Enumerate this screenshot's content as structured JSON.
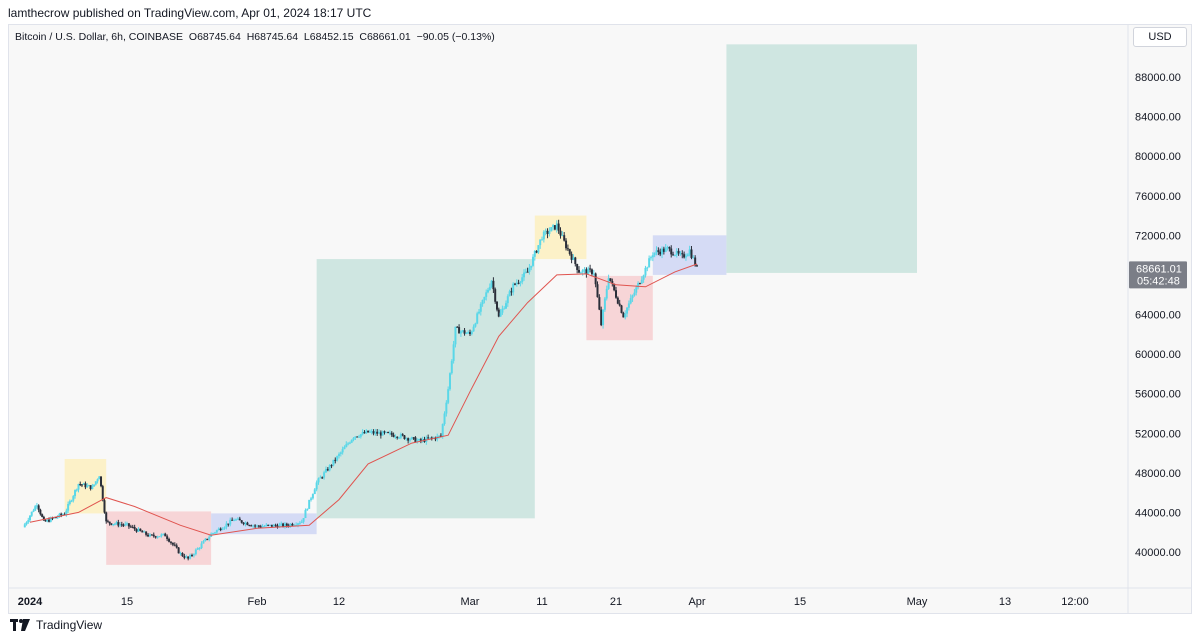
{
  "header": {
    "published": "lamthecrow published on TradingView.com, Apr 01, 2024 18:17 UTC",
    "symbol_line": "Bitcoin / U.S. Dollar, 6h, COINBASE  O68745.64  H68745.64  L68452.15  C68661.01  −90.05 (−0.13%)"
  },
  "currency": "USD",
  "current_price": {
    "price": "68661.01",
    "countdown": "05:42:48"
  },
  "footer": {
    "brand": "TradingView"
  },
  "colors": {
    "up_candle": "#5ad7e8",
    "down_candle": "#2a2e39",
    "ma_line": "#e0544f",
    "target_zone": "#cfe6e1",
    "yellow_zone": "#fcf1c8",
    "red_zone": "#f7d5d7",
    "blue_zone": "#d5dbf5"
  },
  "chart_data": {
    "type": "candlestick",
    "title": "Bitcoin / U.S. Dollar, 6h, COINBASE",
    "ylabel": "USD",
    "ylim": [
      36500,
      91500
    ],
    "price_ticks": [
      "88000.00",
      "84000.00",
      "80000.00",
      "76000.00",
      "72000.00",
      "68000.00",
      "64000.00",
      "60000.00",
      "56000.00",
      "52000.00",
      "48000.00",
      "44000.00",
      "40000.00"
    ],
    "time_ticks": [
      {
        "label": "2024",
        "date": "2024-01-01",
        "bold": true
      },
      {
        "label": "15",
        "date": "2024-01-15"
      },
      {
        "label": "Feb",
        "date": "2024-02-01"
      },
      {
        "label": "12",
        "date": "2024-02-12"
      },
      {
        "label": "Mar",
        "date": "2024-03-01"
      },
      {
        "label": "11",
        "date": "2024-03-11"
      },
      {
        "label": "21",
        "date": "2024-03-21"
      },
      {
        "label": "Apr",
        "date": "2024-04-01"
      },
      {
        "label": "15",
        "date": "2024-04-15"
      },
      {
        "label": "May",
        "date": "2024-05-01"
      },
      {
        "label": "13",
        "date": "2024-05-13"
      },
      {
        "label": "12:00",
        "date": "2024-05-20"
      }
    ],
    "price_path": [
      [
        "2023-12-31",
        42500
      ],
      [
        "2024-01-02",
        44900
      ],
      [
        "2024-01-03",
        43000
      ],
      [
        "2024-01-06",
        43900
      ],
      [
        "2024-01-08",
        46900
      ],
      [
        "2024-01-10",
        46500
      ],
      [
        "2024-01-11",
        47800
      ],
      [
        "2024-01-12",
        43000
      ],
      [
        "2024-01-15",
        42700
      ],
      [
        "2024-01-18",
        41600
      ],
      [
        "2024-01-20",
        41700
      ],
      [
        "2024-01-22",
        39800
      ],
      [
        "2024-01-23",
        39300
      ],
      [
        "2024-01-26",
        41800
      ],
      [
        "2024-01-29",
        43300
      ],
      [
        "2024-02-01",
        42600
      ],
      [
        "2024-02-05",
        42700
      ],
      [
        "2024-02-07",
        43100
      ],
      [
        "2024-02-09",
        47000
      ],
      [
        "2024-02-12",
        49800
      ],
      [
        "2024-02-14",
        51700
      ],
      [
        "2024-02-16",
        52100
      ],
      [
        "2024-02-20",
        51800
      ],
      [
        "2024-02-23",
        51200
      ],
      [
        "2024-02-26",
        51700
      ],
      [
        "2024-02-27",
        56500
      ],
      [
        "2024-02-28",
        62500
      ],
      [
        "2024-03-01",
        62000
      ],
      [
        "2024-03-04",
        67500
      ],
      [
        "2024-03-05",
        63700
      ],
      [
        "2024-03-07",
        66900
      ],
      [
        "2024-03-09",
        68300
      ],
      [
        "2024-03-11",
        71900
      ],
      [
        "2024-03-13",
        73000
      ],
      [
        "2024-03-14",
        71300
      ],
      [
        "2024-03-16",
        68400
      ],
      [
        "2024-03-18",
        68300
      ],
      [
        "2024-03-19",
        63000
      ],
      [
        "2024-03-20",
        67900
      ],
      [
        "2024-03-22",
        63900
      ],
      [
        "2024-03-24",
        67000
      ],
      [
        "2024-03-26",
        70200
      ],
      [
        "2024-03-28",
        70600
      ],
      [
        "2024-03-30",
        69800
      ],
      [
        "2024-03-31",
        70500
      ],
      [
        "2024-04-01",
        68661.01
      ]
    ],
    "moving_average": [
      [
        "2024-01-01",
        43000
      ],
      [
        "2024-01-08",
        44000
      ],
      [
        "2024-01-12",
        45500
      ],
      [
        "2024-01-16",
        44600
      ],
      [
        "2024-01-22",
        42700
      ],
      [
        "2024-01-26",
        41700
      ],
      [
        "2024-02-01",
        42400
      ],
      [
        "2024-02-08",
        42700
      ],
      [
        "2024-02-12",
        45300
      ],
      [
        "2024-02-16",
        48900
      ],
      [
        "2024-02-22",
        51000
      ],
      [
        "2024-02-27",
        51800
      ],
      [
        "2024-03-01",
        56200
      ],
      [
        "2024-03-05",
        61800
      ],
      [
        "2024-03-09",
        65200
      ],
      [
        "2024-03-13",
        68000
      ],
      [
        "2024-03-17",
        68100
      ],
      [
        "2024-03-21",
        67000
      ],
      [
        "2024-03-25",
        66800
      ],
      [
        "2024-03-29",
        68300
      ],
      [
        "2024-04-01",
        69100
      ]
    ],
    "zones": [
      {
        "type": "yellow",
        "from": "2024-01-06",
        "to": "2024-01-12",
        "low": 43900,
        "high": 49400
      },
      {
        "type": "red",
        "from": "2024-01-12",
        "to": "2024-01-26",
        "low": 38700,
        "high": 44100
      },
      {
        "type": "blue",
        "from": "2024-01-26",
        "to": "2024-02-09",
        "low": 41800,
        "high": 43900
      },
      {
        "type": "target",
        "from": "2024-02-09",
        "to": "2024-03-10",
        "low": 43400,
        "high": 69600
      },
      {
        "type": "yellow",
        "from": "2024-03-10",
        "to": "2024-03-17",
        "low": 69600,
        "high": 74000
      },
      {
        "type": "red",
        "from": "2024-03-17",
        "to": "2024-03-26",
        "low": 61400,
        "high": 67900
      },
      {
        "type": "blue",
        "from": "2024-03-26",
        "to": "2024-04-05",
        "low": 68000,
        "high": 72000
      },
      {
        "type": "target",
        "from": "2024-04-05",
        "to": "2024-05-01",
        "low": 68200,
        "high": 91300
      }
    ],
    "current_price": 68661.01
  }
}
